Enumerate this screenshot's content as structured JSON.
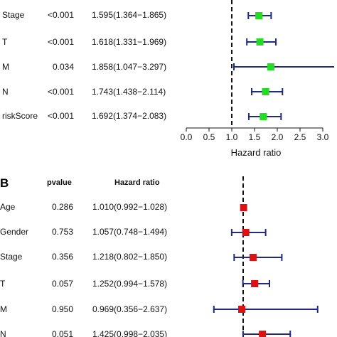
{
  "chart_data": [
    {
      "type": "forest",
      "panel": "",
      "xlabel": "Hazard ratio",
      "xlim": [
        0.0,
        3.0
      ],
      "xticks": [
        "0.0",
        "0.5",
        "1.0",
        "1.5",
        "2.0",
        "2.5",
        "3.0"
      ],
      "reference_line": 1.0,
      "marker_color": "#22dd22",
      "ci_color": "#1f2a80",
      "rows": [
        {
          "label": "Stage",
          "pvalue": "<0.001",
          "hr_text": "1.595(1.364−1.865)",
          "hr": 1.595,
          "lo": 1.364,
          "hi": 1.865
        },
        {
          "label": "T",
          "pvalue": "<0.001",
          "hr_text": "1.618(1.331−1.969)",
          "hr": 1.618,
          "lo": 1.331,
          "hi": 1.969
        },
        {
          "label": "M",
          "pvalue": "0.034",
          "hr_text": "1.858(1.047−3.297)",
          "hr": 1.858,
          "lo": 1.047,
          "hi": 3.297
        },
        {
          "label": "N",
          "pvalue": "<0.001",
          "hr_text": "1.743(1.438−2.114)",
          "hr": 1.743,
          "lo": 1.438,
          "hi": 2.114
        },
        {
          "label": "riskScore",
          "pvalue": "<0.001",
          "hr_text": "1.692(1.374−2.083)",
          "hr": 1.692,
          "lo": 1.374,
          "hi": 2.083
        }
      ]
    },
    {
      "type": "forest",
      "panel": "B",
      "header_pvalue": "pvalue",
      "header_hr": "Hazard ratio",
      "reference_line": 1.0,
      "marker_color": "#dd1111",
      "ci_color": "#1f2a80",
      "rows": [
        {
          "label": "Age",
          "pvalue": "0.286",
          "hr_text": "1.010(0.992−1.028)",
          "hr": 1.01,
          "lo": 0.992,
          "hi": 1.028
        },
        {
          "label": "Gender",
          "pvalue": "0.753",
          "hr_text": "1.057(0.748−1.494)",
          "hr": 1.057,
          "lo": 0.748,
          "hi": 1.494
        },
        {
          "label": "Stage",
          "pvalue": "0.356",
          "hr_text": "1.218(0.802−1.850)",
          "hr": 1.218,
          "lo": 0.802,
          "hi": 1.85
        },
        {
          "label": "T",
          "pvalue": "0.057",
          "hr_text": "1.252(0.994−1.578)",
          "hr": 1.252,
          "lo": 0.994,
          "hi": 1.578
        },
        {
          "label": "M",
          "pvalue": "0.950",
          "hr_text": "0.969(0.356−2.637)",
          "hr": 0.969,
          "lo": 0.356,
          "hi": 2.637
        },
        {
          "label": "N",
          "pvalue": "0.051",
          "hr_text": "1.425(0.998−2.035)",
          "hr": 1.425,
          "lo": 0.998,
          "hi": 2.035
        }
      ]
    }
  ]
}
